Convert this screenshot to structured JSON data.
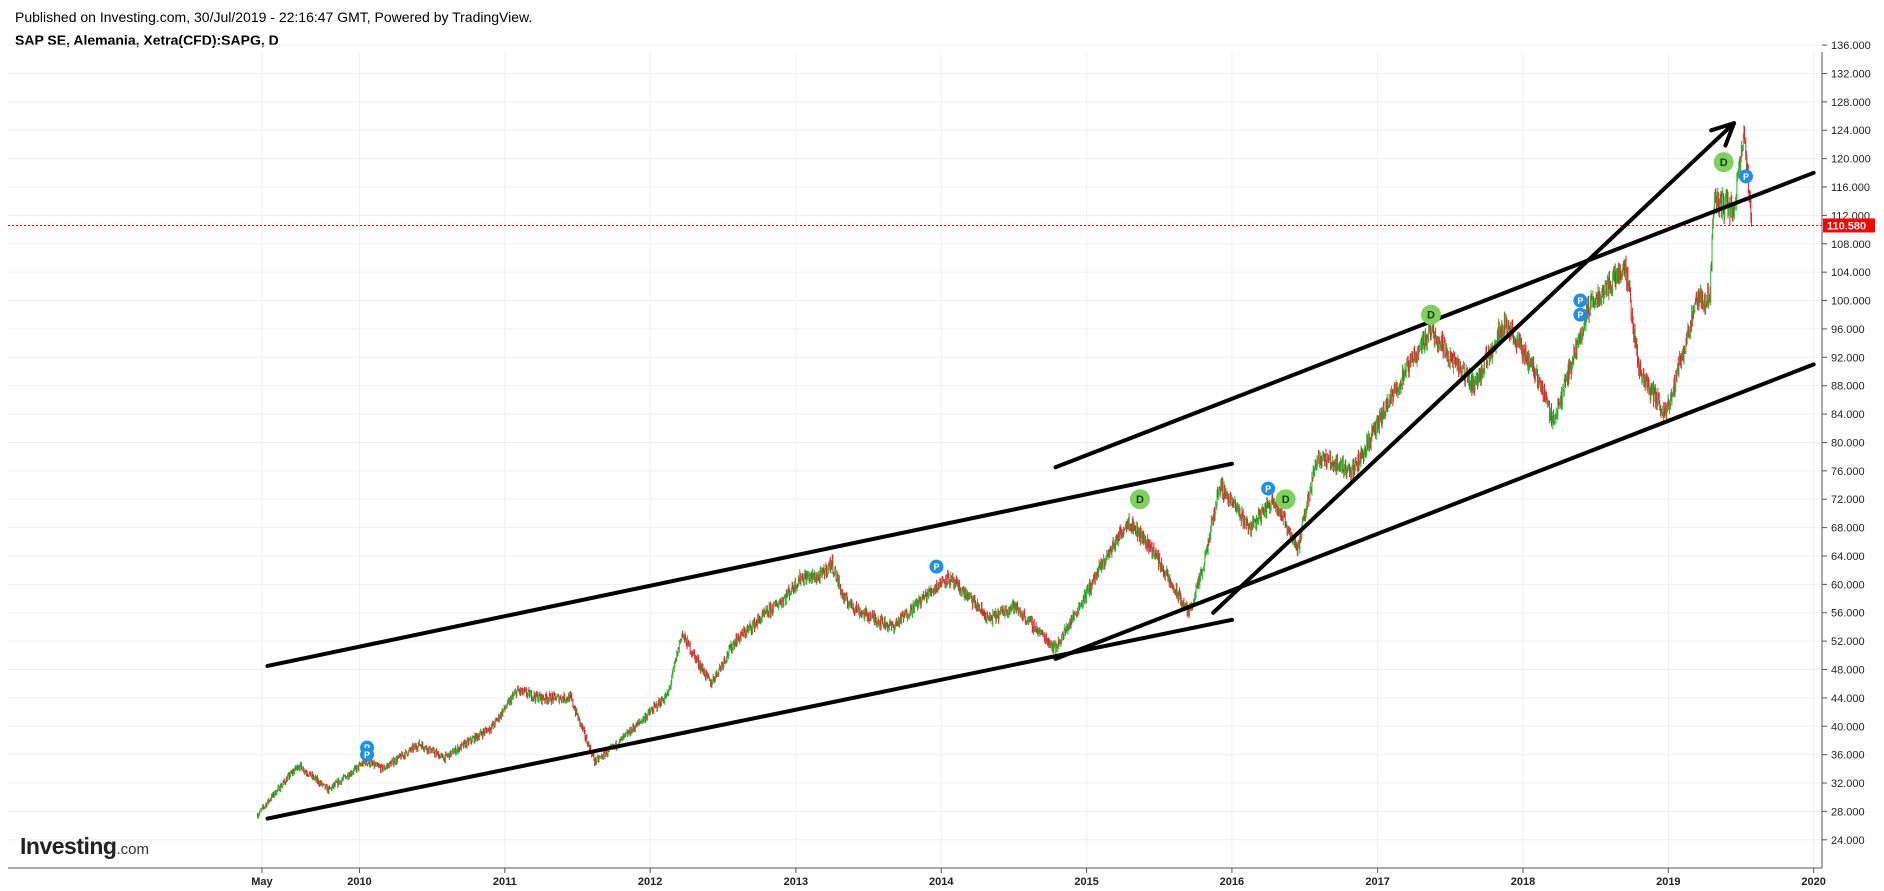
{
  "header": {
    "published_line": "Published on Investing.com, 30/Jul/2019 - 22:16:47 GMT, Powered by TradingView.",
    "symbol_line": "SAP SE, Alemania, Xetra(CFD):SAPG, D"
  },
  "logo": {
    "main": "Investing",
    "suffix": ".com"
  },
  "colors": {
    "up": "#2db42d",
    "down": "#e0242a",
    "current_price_line": "#ff0000",
    "grid": "#f0f0f0",
    "dividend_marker": "#7dd35a",
    "publication_marker": "#1e90e6",
    "trendline": "#000000"
  },
  "chart_data": {
    "type": "candlestick",
    "x_axis": {
      "type": "date",
      "tick_labels": [
        "May",
        "2010",
        "2011",
        "2012",
        "2013",
        "2014",
        "2015",
        "2016",
        "2017",
        "2018",
        "2019",
        "2020"
      ],
      "tick_dates": [
        "2009-05-01",
        "2010-01-01",
        "2011-01-01",
        "2012-01-01",
        "2013-01-01",
        "2014-01-01",
        "2015-01-01",
        "2016-01-01",
        "2017-01-01",
        "2018-01-01",
        "2019-01-01",
        "2020-01-01"
      ],
      "range": [
        "2009-04-01",
        "2020-02-01"
      ]
    },
    "y_axis": {
      "side": "right",
      "tick_labels": [
        "24.000",
        "28.000",
        "32.000",
        "36.000",
        "40.000",
        "44.000",
        "48.000",
        "52.000",
        "56.000",
        "60.000",
        "64.000",
        "68.000",
        "72.000",
        "76.000",
        "80.000",
        "84.000",
        "88.000",
        "92.000",
        "96.000",
        "100.000",
        "104.000",
        "108.000",
        "112.000",
        "116.000",
        "120.000",
        "124.000",
        "128.000",
        "132.000",
        "136.000"
      ],
      "range": [
        22,
        137
      ]
    },
    "grid": true,
    "current_price": {
      "value": 110.58,
      "label": "110.580"
    },
    "price_path": [
      [
        "2009-04-20",
        27.5
      ],
      [
        "2009-06-01",
        30.5
      ],
      [
        "2009-08-01",
        34.5
      ],
      [
        "2009-10-15",
        31.0
      ],
      [
        "2010-01-15",
        35.0
      ],
      [
        "2010-03-01",
        34.0
      ],
      [
        "2010-06-01",
        37.5
      ],
      [
        "2010-08-01",
        35.5
      ],
      [
        "2010-12-01",
        40.0
      ],
      [
        "2011-02-01",
        45.0
      ],
      [
        "2011-04-01",
        44.0
      ],
      [
        "2011-06-15",
        44.0
      ],
      [
        "2011-08-15",
        35.0
      ],
      [
        "2011-10-01",
        37.0
      ],
      [
        "2012-01-01",
        42.0
      ],
      [
        "2012-02-15",
        44.5
      ],
      [
        "2012-03-20",
        53.0
      ],
      [
        "2012-05-01",
        49.0
      ],
      [
        "2012-06-01",
        46.0
      ],
      [
        "2012-08-01",
        52.0
      ],
      [
        "2012-12-01",
        58.0
      ],
      [
        "2013-01-15",
        61.0
      ],
      [
        "2013-03-01",
        61.0
      ],
      [
        "2013-04-01",
        63.0
      ],
      [
        "2013-05-01",
        58.0
      ],
      [
        "2013-06-15",
        56.0
      ],
      [
        "2013-09-01",
        54.0
      ],
      [
        "2013-11-15",
        58.0
      ],
      [
        "2014-01-15",
        61.0
      ],
      [
        "2014-03-15",
        58.0
      ],
      [
        "2014-05-01",
        55.0
      ],
      [
        "2014-07-01",
        57.0
      ],
      [
        "2014-10-15",
        51.0
      ],
      [
        "2014-12-15",
        57.0
      ],
      [
        "2015-02-01",
        62.0
      ],
      [
        "2015-04-15",
        69.0
      ],
      [
        "2015-06-15",
        65.0
      ],
      [
        "2015-08-01",
        60.0
      ],
      [
        "2015-09-15",
        56.0
      ],
      [
        "2015-10-20",
        62.0
      ],
      [
        "2015-12-01",
        74.0
      ],
      [
        "2016-02-15",
        68.0
      ],
      [
        "2016-04-15",
        72.0
      ],
      [
        "2016-06-15",
        65.0
      ],
      [
        "2016-08-01",
        78.0
      ],
      [
        "2016-11-01",
        76.0
      ],
      [
        "2017-01-15",
        84.0
      ],
      [
        "2017-04-01",
        92.0
      ],
      [
        "2017-05-15",
        96.0
      ],
      [
        "2017-07-15",
        91.0
      ],
      [
        "2017-09-01",
        88.0
      ],
      [
        "2017-11-15",
        97.0
      ],
      [
        "2018-02-01",
        90.0
      ],
      [
        "2018-03-20",
        83.0
      ],
      [
        "2018-04-15",
        88.0
      ],
      [
        "2018-06-15",
        99.0
      ],
      [
        "2018-08-01",
        102.0
      ],
      [
        "2018-09-15",
        105.0
      ],
      [
        "2018-10-20",
        90.0
      ],
      [
        "2018-12-25",
        84.0
      ],
      [
        "2019-03-15",
        100.0
      ],
      [
        "2019-04-15",
        100.0
      ],
      [
        "2019-04-25",
        114.0
      ],
      [
        "2019-06-15",
        113.0
      ],
      [
        "2019-07-10",
        123.0
      ],
      [
        "2019-07-30",
        110.58
      ]
    ],
    "trendlines": [
      {
        "from": [
          "2009-05-15",
          48.5
        ],
        "to": [
          "2016-01-01",
          77.0
        ]
      },
      {
        "from": [
          "2009-05-15",
          27.0
        ],
        "to": [
          "2016-01-01",
          55.0
        ]
      },
      {
        "from": [
          "2014-10-15",
          76.5
        ],
        "to": [
          "2020-01-01",
          118.0
        ]
      },
      {
        "from": [
          "2014-10-15",
          49.5
        ],
        "to": [
          "2020-01-01",
          91.0
        ]
      }
    ],
    "arrow": {
      "from": [
        "2015-11-15",
        56.0
      ],
      "to": [
        "2019-06-15",
        125.0
      ]
    },
    "event_markers": [
      {
        "type": "D",
        "date": "2015-05-15",
        "value": 72.0
      },
      {
        "type": "D",
        "date": "2016-05-15",
        "value": 72.0
      },
      {
        "type": "D",
        "date": "2017-05-15",
        "value": 98.0
      },
      {
        "type": "D",
        "date": "2019-05-20",
        "value": 119.5
      },
      {
        "type": "P",
        "date": "2010-01-20",
        "value": 37.0
      },
      {
        "type": "P",
        "date": "2010-01-20",
        "value": 36.0
      },
      {
        "type": "P",
        "date": "2013-12-20",
        "value": 62.5
      },
      {
        "type": "P",
        "date": "2016-04-01",
        "value": 73.5
      },
      {
        "type": "P",
        "date": "2018-05-25",
        "value": 100.0
      },
      {
        "type": "P",
        "date": "2018-05-25",
        "value": 98.0
      },
      {
        "type": "P",
        "date": "2019-07-15",
        "value": 117.5
      }
    ]
  }
}
